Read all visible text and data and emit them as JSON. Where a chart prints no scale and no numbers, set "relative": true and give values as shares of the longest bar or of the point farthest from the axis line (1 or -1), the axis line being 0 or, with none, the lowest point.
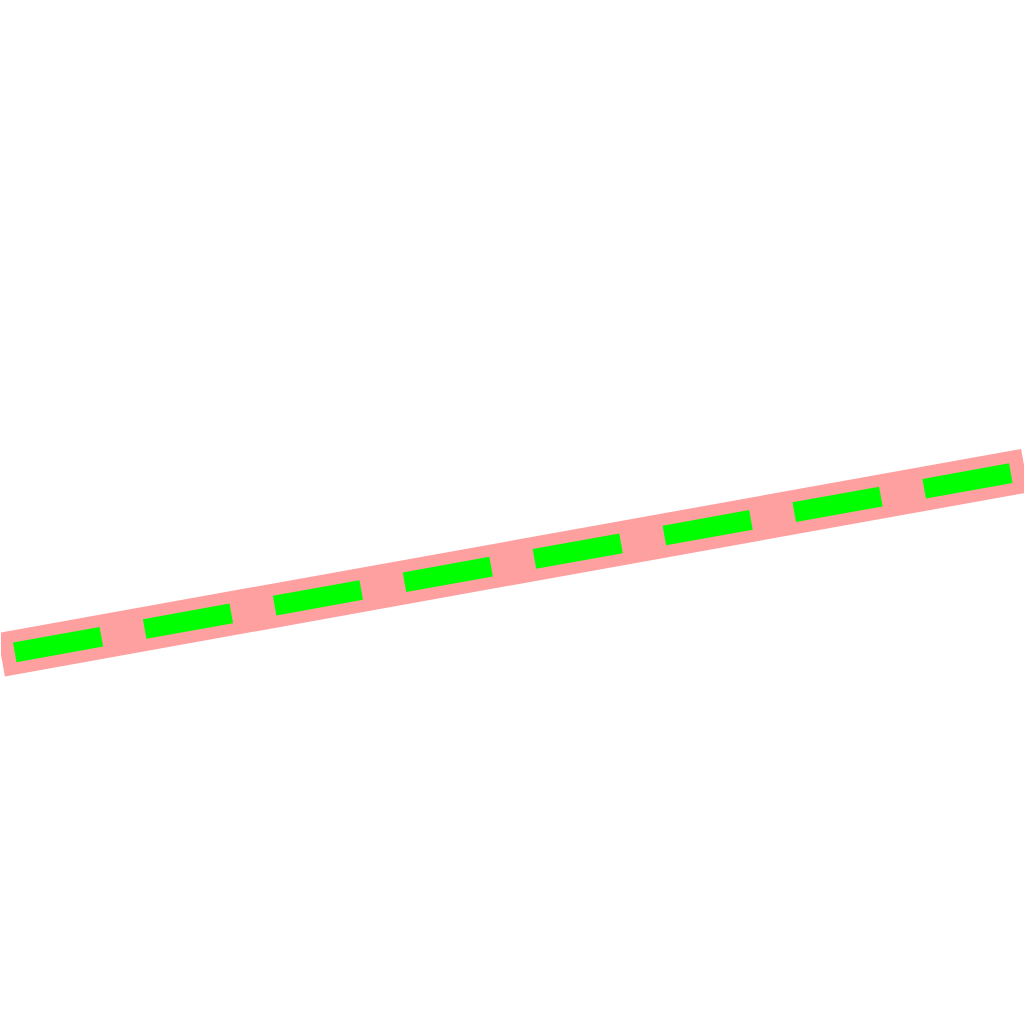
{
  "chart_data": {
    "type": "line",
    "relative": true,
    "categories": [
      null,
      null
    ],
    "series": [
      {
        "color": "#ffa0a0",
        "values": [
          0,
          1
        ],
        "line_style": "solid"
      },
      {
        "color": "#00ff00",
        "values": [
          0,
          1
        ],
        "line_style": "dashed"
      }
    ],
    "grid": false,
    "marker": "none"
  }
}
